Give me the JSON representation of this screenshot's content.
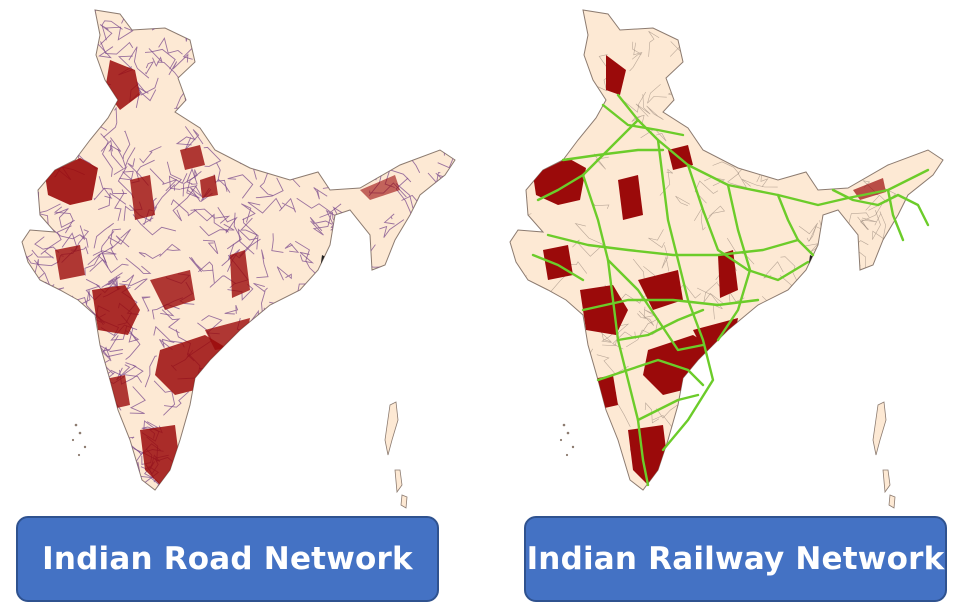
{
  "panels": [
    {
      "caption": "Indian Road Network"
    },
    {
      "caption": "Indian Railway Network"
    }
  ],
  "colors": {
    "land": "#fde9d4",
    "highlight": "#9b0a0a",
    "road": "#7a4a8c",
    "rail": "#6ccc2a",
    "caption_bg": "#4472c4",
    "caption_text": "#ffffff",
    "border": "#8c7b70"
  }
}
